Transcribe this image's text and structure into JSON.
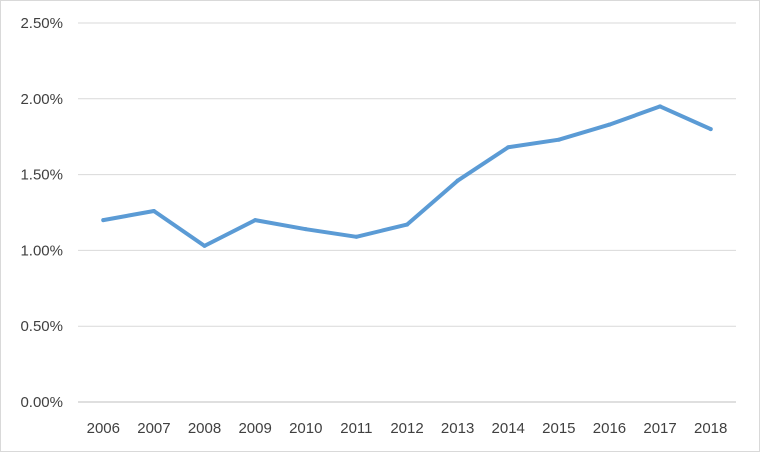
{
  "chart_data": {
    "type": "line",
    "title": "",
    "xlabel": "",
    "ylabel": "",
    "categories": [
      "2006",
      "2007",
      "2008",
      "2009",
      "2010",
      "2011",
      "2012",
      "2013",
      "2014",
      "2015",
      "2016",
      "2017",
      "2018"
    ],
    "series": [
      {
        "values": [
          1.2,
          1.26,
          1.03,
          1.2,
          1.14,
          1.09,
          1.17,
          1.46,
          1.68,
          1.73,
          1.83,
          1.95,
          1.8
        ],
        "color": "#5b9bd5"
      }
    ],
    "ylim": [
      0,
      2.5
    ],
    "y_ticks": [
      "0.00%",
      "0.50%",
      "1.00%",
      "1.50%",
      "2.00%",
      "2.50%"
    ],
    "grid": true,
    "legend": "none"
  }
}
